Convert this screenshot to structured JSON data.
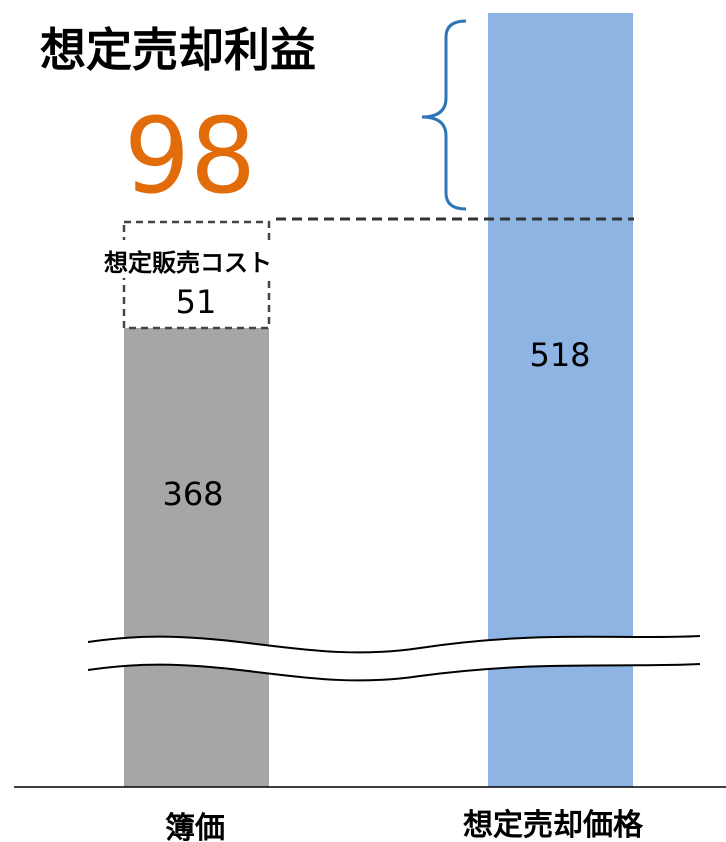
{
  "chart_data": {
    "type": "bar",
    "title": "想定売却利益",
    "profit_value": "98",
    "categories": [
      "簿価",
      "想定売却価格"
    ],
    "series": [
      {
        "values": [
          368,
          518
        ]
      }
    ],
    "stacked_cost": {
      "label": "想定販売コスト",
      "value": 51
    },
    "bar_labels": [
      "368",
      "518"
    ],
    "cost_label_value": "51",
    "axis_break": true,
    "ylim": [
      0,
      518
    ]
  },
  "colors": {
    "book_bar": "#a6a6a6",
    "sale_bar": "#8eb4e3",
    "profit_text": "#e36c0a",
    "brace": "#2e75b6",
    "text": "#000000"
  }
}
